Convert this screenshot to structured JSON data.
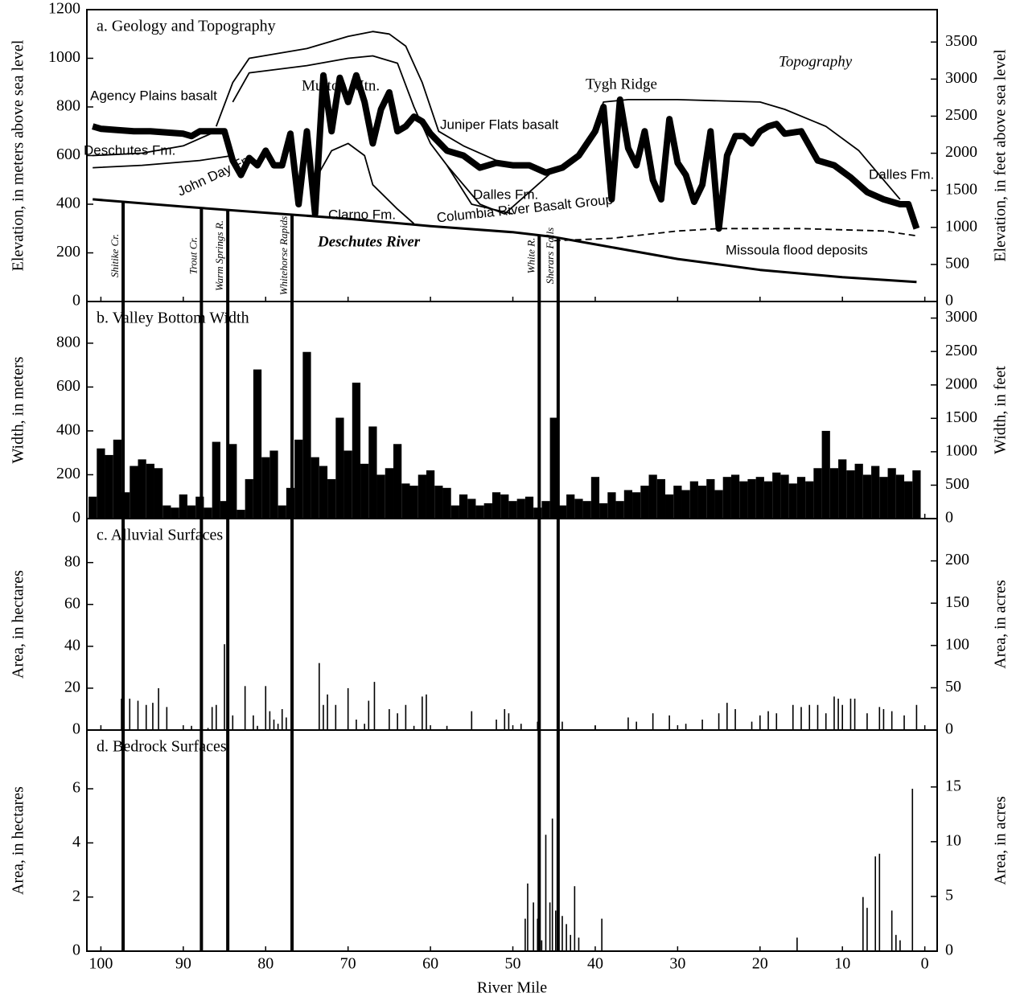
{
  "chart_data": [
    {
      "type": "line",
      "title": "a. Geology and Topography",
      "ylabel": "Elevation, in meters above sea level",
      "y2label": "Elevation, in feet above sea level",
      "xlim": [
        101.7,
        -1.5
      ],
      "xticks": [
        100,
        90,
        80,
        70,
        60,
        50,
        40,
        30,
        20,
        10,
        0
      ],
      "ylim": [
        0,
        1200
      ],
      "yticks": [
        0,
        200,
        400,
        600,
        800,
        1000,
        1200
      ],
      "y2lim": [
        0,
        3937
      ],
      "y2ticks": [
        0,
        500,
        1000,
        1500,
        2000,
        2500,
        3000,
        3500
      ],
      "series": [
        {
          "name": "Topography",
          "color": "#000000",
          "x": [
            101,
            100,
            98,
            96,
            94,
            92,
            90,
            89,
            88,
            86,
            85,
            84,
            83,
            82,
            81,
            80,
            79,
            78,
            77,
            76,
            75,
            74,
            73,
            72,
            71,
            70,
            69,
            68,
            67,
            66,
            65,
            64,
            63,
            62,
            61,
            60,
            58,
            56,
            54,
            52,
            50,
            48,
            46,
            44,
            42,
            40,
            39,
            38,
            37,
            36,
            35,
            34,
            33,
            32,
            31,
            30,
            29,
            28,
            27,
            26,
            25,
            24,
            23,
            22,
            21,
            20,
            19,
            18,
            17,
            15,
            13,
            11,
            9,
            7,
            5,
            3,
            2,
            1
          ],
          "values": [
            720,
            710,
            705,
            700,
            700,
            695,
            690,
            680,
            700,
            700,
            700,
            580,
            520,
            590,
            560,
            620,
            560,
            560,
            690,
            400,
            700,
            360,
            930,
            700,
            920,
            820,
            930,
            820,
            650,
            790,
            860,
            700,
            720,
            760,
            740,
            690,
            620,
            600,
            550,
            570,
            560,
            560,
            530,
            550,
            600,
            700,
            800,
            420,
            830,
            630,
            560,
            700,
            500,
            420,
            750,
            570,
            520,
            410,
            480,
            700,
            300,
            600,
            680,
            680,
            650,
            700,
            720,
            730,
            690,
            700,
            580,
            560,
            510,
            450,
            420,
            400,
            400,
            300
          ]
        },
        {
          "name": "Deschutes River",
          "color": "#000000",
          "x": [
            101,
            90,
            80,
            70,
            60,
            50,
            45,
            40,
            30,
            20,
            10,
            1
          ],
          "values": [
            420,
            390,
            365,
            340,
            310,
            285,
            265,
            235,
            175,
            130,
            100,
            80
          ]
        },
        {
          "color": "#000000",
          "x": [
            86,
            84,
            82,
            75,
            70,
            67,
            65,
            63,
            61,
            59,
            56,
            52
          ],
          "values": [
            720,
            900,
            1000,
            1040,
            1090,
            1110,
            1100,
            1050,
            900,
            700,
            640,
            580
          ]
        },
        {
          "color": "#000000",
          "x": [
            84,
            82,
            75,
            70,
            67,
            64,
            62,
            60,
            58,
            55,
            50
          ],
          "values": [
            820,
            940,
            970,
            1000,
            1010,
            980,
            800,
            650,
            560,
            400,
            360
          ]
        },
        {
          "color": "#000000",
          "x": [
            101,
            95,
            90,
            86
          ],
          "values": [
            600,
            610,
            640,
            700
          ]
        },
        {
          "color": "#000000",
          "x": [
            101,
            95,
            88,
            84
          ],
          "values": [
            550,
            560,
            580,
            600
          ]
        },
        {
          "color": "#000000",
          "x": [
            74,
            72,
            70,
            68,
            67,
            64,
            62
          ],
          "values": [
            500,
            620,
            650,
            600,
            480,
            380,
            320
          ]
        },
        {
          "color": "#000000",
          "x": [
            58,
            54,
            51,
            48,
            45
          ],
          "values": [
            560,
            400,
            360,
            450,
            540
          ]
        },
        {
          "color": "#000000",
          "x": [
            41,
            39,
            36,
            30,
            20,
            17,
            12,
            8,
            5,
            3
          ],
          "values": [
            640,
            820,
            830,
            830,
            820,
            790,
            720,
            620,
            500,
            420
          ]
        },
        {
          "color": "#000000",
          "line_style": "dashed",
          "x": [
            45,
            38,
            30,
            25,
            15,
            5,
            1
          ],
          "values": [
            250,
            260,
            290,
            300,
            300,
            290,
            270
          ]
        }
      ],
      "annotations": [
        "Agency Plains basalt",
        "Mutton Mtn.",
        "Tygh Ridge",
        "Juniper Flats basalt",
        "Deschutes Fm.",
        "John Day Fm.",
        "Dalles Fm.",
        "Clarno Fm.",
        "Columbia River Basalt Group",
        "Missoula flood deposits",
        "Dalles Fm."
      ],
      "tributaries": [
        {
          "label": "Shitike Cr.",
          "mile": 97.3
        },
        {
          "label": "Trout Cr.",
          "mile": 87.8
        },
        {
          "label": "Warm Springs R.",
          "mile": 84.6
        },
        {
          "label": "Whitehorse Rapids",
          "mile": 76.8
        },
        {
          "label": "White R.",
          "mile": 46.8
        },
        {
          "label": "Sherars Falls",
          "mile": 44.5
        }
      ]
    },
    {
      "type": "bar",
      "title": "b. Valley Bottom Width",
      "ylabel": "Width, in meters",
      "y2label": "Width, in feet",
      "color": "#000000",
      "xlim": [
        101.7,
        -1.5
      ],
      "xticks": [
        100,
        90,
        80,
        70,
        60,
        50,
        40,
        30,
        20,
        10,
        0
      ],
      "ylim": [
        0,
        990
      ],
      "yticks": [
        0,
        200,
        400,
        600,
        800
      ],
      "y2lim": [
        0,
        3248
      ],
      "y2ticks": [
        0,
        500,
        1000,
        1500,
        2000,
        2500,
        3000
      ],
      "x": [
        101,
        100,
        99,
        98,
        97,
        96,
        95,
        94,
        93,
        92,
        91,
        90,
        89,
        88,
        87,
        86,
        85,
        84,
        83,
        82,
        81,
        80,
        79,
        78,
        77,
        76,
        75,
        74,
        73,
        72,
        71,
        70,
        69,
        68,
        67,
        66,
        65,
        64,
        63,
        62,
        61,
        60,
        59,
        58,
        57,
        56,
        55,
        54,
        53,
        52,
        51,
        50,
        49,
        48,
        47,
        46,
        45,
        44,
        43,
        42,
        41,
        40,
        39,
        38,
        37,
        36,
        35,
        34,
        33,
        32,
        31,
        30,
        29,
        28,
        27,
        26,
        25,
        24,
        23,
        22,
        21,
        20,
        19,
        18,
        17,
        16,
        15,
        14,
        13,
        12,
        11,
        10,
        9,
        8,
        7,
        6,
        5,
        4,
        3,
        2,
        1
      ],
      "values": [
        100,
        320,
        290,
        360,
        120,
        240,
        270,
        250,
        230,
        60,
        50,
        110,
        60,
        100,
        50,
        350,
        80,
        340,
        40,
        180,
        680,
        280,
        310,
        60,
        140,
        360,
        760,
        280,
        240,
        180,
        460,
        310,
        620,
        250,
        420,
        200,
        230,
        340,
        160,
        150,
        200,
        220,
        150,
        140,
        60,
        110,
        90,
        60,
        70,
        120,
        110,
        80,
        90,
        100,
        50,
        80,
        460,
        60,
        110,
        90,
        80,
        190,
        70,
        120,
        80,
        130,
        120,
        150,
        200,
        180,
        110,
        150,
        130,
        170,
        150,
        180,
        130,
        190,
        200,
        170,
        180,
        190,
        170,
        210,
        200,
        160,
        190,
        170,
        230,
        400,
        230,
        270,
        220,
        250,
        200,
        240,
        190,
        230,
        200,
        170,
        220
      ]
    },
    {
      "type": "stem",
      "title": "c. Alluvial Surfaces",
      "ylabel": "Area, in hectares",
      "y2label": "Area, in acres",
      "color": "#000000",
      "xlim": [
        101.7,
        -1.5
      ],
      "xticks": [
        100,
        90,
        80,
        70,
        60,
        50,
        40,
        30,
        20,
        10,
        0
      ],
      "ylim": [
        0,
        101
      ],
      "yticks": [
        0,
        20,
        40,
        60,
        80
      ],
      "y2lim": [
        0,
        250
      ],
      "y2ticks": [
        0,
        50,
        100,
        150,
        200
      ],
      "x": [
        97.5,
        96.5,
        95.5,
        94.5,
        93.7,
        93,
        92,
        89,
        87,
        86.5,
        86,
        85,
        84.5,
        84,
        82.5,
        81.5,
        81,
        80,
        79.5,
        79,
        78.5,
        78,
        77.5,
        73.5,
        73,
        72.5,
        71.5,
        70,
        69,
        68,
        67.5,
        66.8,
        65,
        64,
        63,
        62,
        61,
        60.5,
        58,
        55,
        52,
        51,
        50.5,
        49,
        47,
        44,
        40,
        36,
        35,
        33,
        31,
        29,
        27,
        25,
        24,
        23,
        21,
        20,
        19,
        18,
        16,
        15,
        14,
        13,
        12,
        11,
        10.5,
        10,
        9,
        8.5,
        7,
        5.5,
        5,
        4,
        2.5,
        1
      ],
      "values": [
        15,
        15,
        14,
        12,
        13,
        20,
        11,
        2,
        1,
        11,
        12,
        41,
        12,
        7,
        21,
        7,
        2,
        21,
        9,
        5,
        3,
        10,
        6,
        32,
        12,
        17,
        12,
        20,
        5,
        3,
        14,
        23,
        10,
        8,
        12,
        2,
        16,
        17,
        2,
        9,
        5,
        10,
        8,
        3,
        4,
        4,
        2,
        6,
        4,
        8,
        7,
        3,
        5,
        8,
        13,
        10,
        4,
        7,
        9,
        8,
        12,
        11,
        12,
        12,
        8,
        16,
        15,
        12,
        15,
        15,
        8,
        11,
        10,
        9,
        7,
        12
      ]
    },
    {
      "type": "stem",
      "title": "d. Bedrock Surfaces",
      "ylabel": "Area, in hectares",
      "y2label": "Area, in acres",
      "xlabel": "River Mile",
      "color": "#000000",
      "xlim": [
        101.7,
        -1.5
      ],
      "xticks": [
        100,
        90,
        80,
        70,
        60,
        50,
        40,
        30,
        20,
        10,
        0
      ],
      "ylim": [
        0,
        8.17
      ],
      "yticks": [
        0,
        2,
        4,
        6
      ],
      "y2lim": [
        0,
        20.2
      ],
      "y2ticks": [
        0,
        5,
        10,
        15
      ],
      "x": [
        48.5,
        48.2,
        47.5,
        47,
        46.5,
        46,
        45.5,
        45.2,
        44.8,
        44.5,
        44,
        43.5,
        43,
        42.5,
        42,
        39.2,
        15.5,
        7.5,
        7,
        6,
        5.5,
        4,
        3.5,
        3,
        1.5
      ],
      "values": [
        1.2,
        2.5,
        1.8,
        1.2,
        0.4,
        4.3,
        1.8,
        4.9,
        1.5,
        6.5,
        1.3,
        1.0,
        0.6,
        2.4,
        0.5,
        1.2,
        0.5,
        2.0,
        1.6,
        3.5,
        3.6,
        1.5,
        0.6,
        0.4,
        6.0
      ]
    }
  ]
}
